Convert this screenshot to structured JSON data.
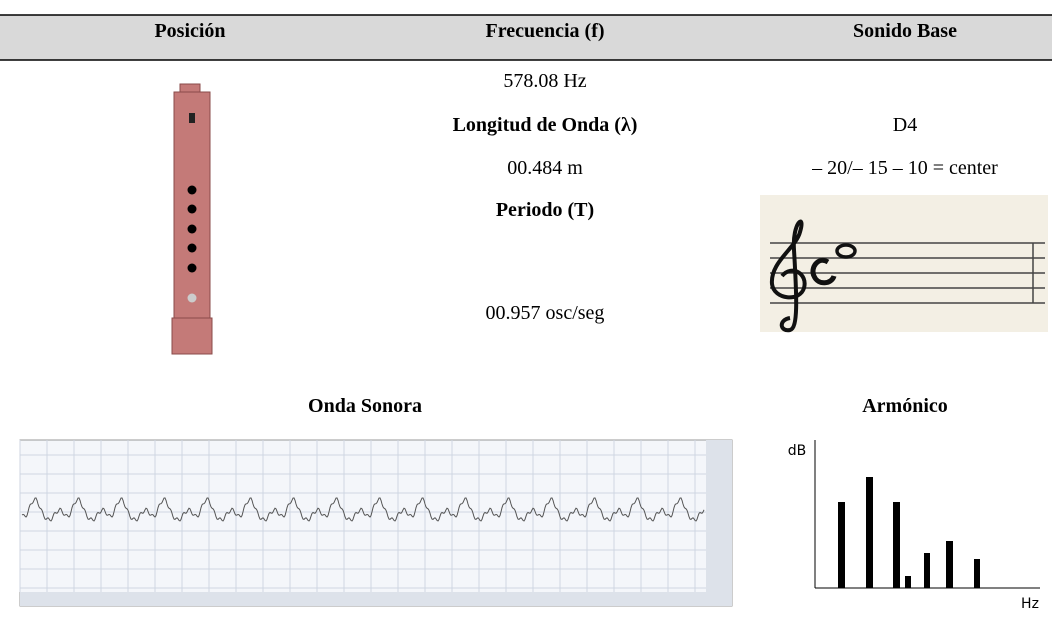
{
  "header": {
    "columns": [
      "Posición",
      "Frecuencia (f)",
      "Sonido Base"
    ]
  },
  "frequency": {
    "value": "578.08 Hz",
    "wavelength_label": "Longitud de Onda (λ)",
    "wavelength": "00.484 m",
    "period_label": "Periodo (T)",
    "period": "00.957 osc/seg"
  },
  "base_sound": {
    "note": "D4",
    "tuning": "– 20/– 15 – 10 = center"
  },
  "wave": {
    "title": "Onda Sonora"
  },
  "harmonic": {
    "title": "Armónico",
    "y_axis": "dB",
    "x_axis": "Hz"
  }
}
